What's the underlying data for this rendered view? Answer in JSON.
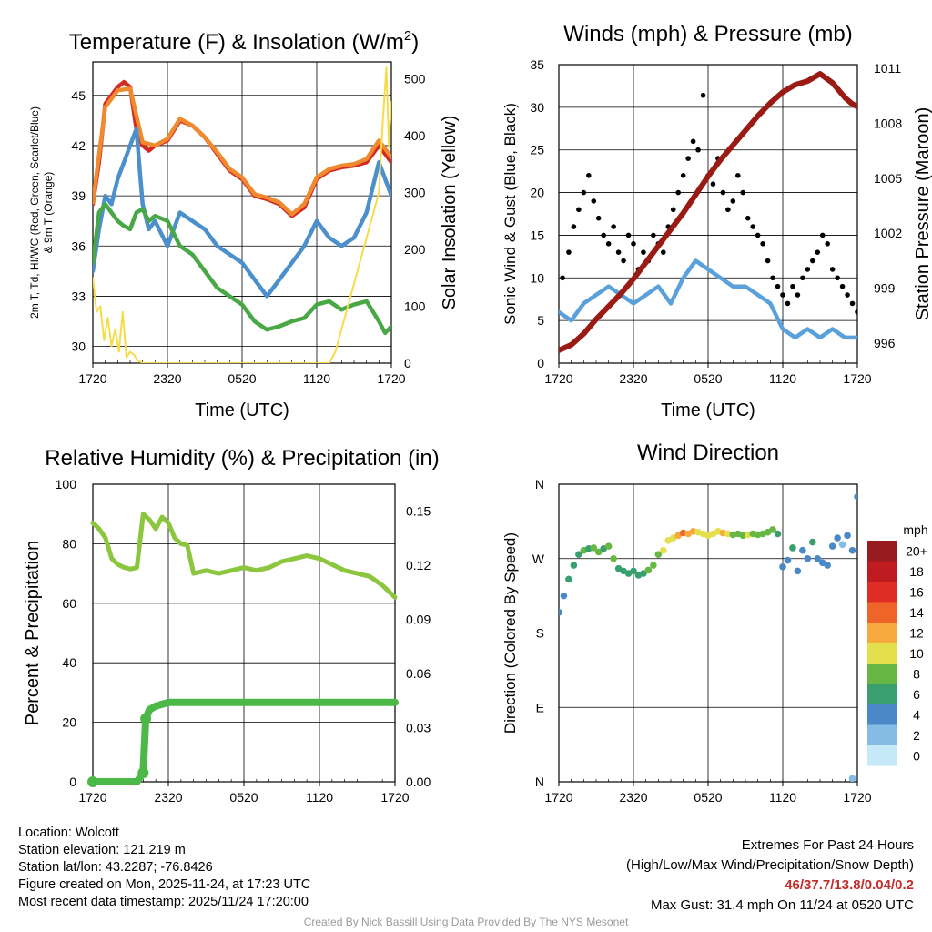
{
  "colors": {
    "red": "#d42a24",
    "orange": "#f08a2e",
    "blue": "#4b90cc",
    "green": "#48a845",
    "yellow": "#f7dc4a",
    "maroon": "#9a1a14",
    "black": "#000000",
    "wind_blue": "#5aa0da",
    "rh_green": "#8cc63f",
    "precip_green": "#4cb848"
  },
  "chart_data": [
    {
      "id": "temp",
      "type": "line",
      "title": "Temperature (F) & Insolation (W/m²)",
      "title_main": "Temperature (F) & Insolation (W/m",
      "title_sup": "2",
      "title_close": ")",
      "xlabel": "Time (UTC)",
      "ylabel_line1": "2m T, Td, HI/WC (Red, Green, Scarlet/Blue)",
      "ylabel_line2": "& 9m T (Orange)",
      "ylabel_right": "Solar Insolation (Yellow)",
      "x_ticks": [
        "1720",
        "2320",
        "0520",
        "1120",
        "1720"
      ],
      "xlim": [
        0,
        24
      ],
      "ylim": [
        29,
        47
      ],
      "y_ticks": [
        30,
        33,
        36,
        39,
        42,
        45
      ],
      "y2lim": [
        0,
        530
      ],
      "y2_ticks": [
        0,
        100,
        200,
        300,
        400,
        500
      ],
      "series": [
        {
          "name": "2m T",
          "color": "red",
          "axis": "left",
          "x": [
            0,
            0.5,
            1,
            1.5,
            2,
            2.5,
            3,
            3.5,
            4,
            4.5,
            5,
            6,
            7,
            8,
            9,
            10,
            11,
            12,
            13,
            14,
            15,
            16,
            17,
            18,
            19,
            20,
            21,
            22,
            23,
            23.5,
            24
          ],
          "y": [
            38.5,
            41,
            44.5,
            45,
            45.5,
            45.8,
            45.5,
            43,
            42,
            41.7,
            42,
            42.3,
            43.5,
            43.2,
            42.5,
            41.5,
            40.5,
            40,
            39,
            38.8,
            38.5,
            37.8,
            38.3,
            40,
            40.5,
            40.7,
            40.8,
            41,
            42,
            41.5,
            41
          ]
        },
        {
          "name": "9m T",
          "color": "orange",
          "axis": "left",
          "x": [
            0,
            1,
            2,
            3,
            4,
            5,
            6,
            7,
            8,
            9,
            10,
            11,
            12,
            13,
            14,
            15,
            16,
            17,
            18,
            19,
            20,
            21,
            22,
            23,
            24
          ],
          "y": [
            38.6,
            44.3,
            45.3,
            45.4,
            42.2,
            42,
            42.4,
            43.6,
            43.2,
            42.5,
            41.6,
            40.6,
            40.1,
            39.1,
            38.9,
            38.6,
            37.9,
            38.5,
            40.1,
            40.6,
            40.8,
            40.9,
            41.2,
            42.3,
            41.3
          ]
        },
        {
          "name": "HI/WC",
          "color": "blue",
          "axis": "left",
          "x": [
            0,
            0.5,
            1,
            1.5,
            2,
            2.5,
            3,
            3.5,
            4,
            4.5,
            5,
            6,
            7,
            8,
            9,
            10,
            11,
            12,
            13,
            14,
            15,
            16,
            17,
            18,
            19,
            20,
            21,
            22,
            23,
            23.5,
            24
          ],
          "y": [
            34.5,
            37,
            39,
            38.5,
            40,
            41,
            42,
            43,
            38.5,
            37,
            37.5,
            36,
            38,
            37.5,
            37,
            36,
            35.5,
            35,
            34,
            33,
            34,
            35,
            36,
            37.5,
            36.5,
            36,
            36.5,
            38,
            41,
            40,
            39
          ]
        },
        {
          "name": "2m Td",
          "color": "green",
          "axis": "left",
          "x": [
            0,
            0.5,
            1,
            1.5,
            2,
            2.5,
            3,
            3.5,
            4,
            4.5,
            5,
            6,
            7,
            8,
            9,
            10,
            11,
            12,
            13,
            14,
            15,
            16,
            17,
            18,
            19,
            20,
            21,
            22,
            23,
            23.5,
            24
          ],
          "y": [
            35,
            38,
            38.5,
            38,
            37.5,
            37.2,
            37,
            38,
            38.2,
            37.5,
            37.8,
            37.5,
            36,
            35.5,
            34.5,
            33.5,
            33,
            32.5,
            31.5,
            31,
            31.2,
            31.5,
            31.7,
            32.5,
            32.7,
            32.2,
            32.5,
            32.7,
            31.5,
            30.8,
            31.2
          ]
        },
        {
          "name": "Solar Insolation",
          "color": "yellow",
          "axis": "right",
          "x": [
            0,
            0.3,
            0.6,
            0.9,
            1.2,
            1.5,
            1.8,
            2.1,
            2.4,
            2.7,
            3,
            3.3,
            3.6,
            4,
            5,
            10,
            15,
            19,
            19.5,
            20,
            20.5,
            21,
            21.5,
            22,
            22.5,
            23,
            23.3,
            23.6,
            23.8,
            24
          ],
          "y": [
            150,
            90,
            100,
            40,
            80,
            30,
            60,
            20,
            90,
            10,
            20,
            15,
            5,
            0,
            0,
            0,
            0,
            0,
            20,
            60,
            100,
            140,
            180,
            220,
            260,
            300,
            420,
            520,
            380,
            460
          ]
        }
      ]
    },
    {
      "id": "winds",
      "type": "line+scatter",
      "title": "Winds (mph) & Pressure (mb)",
      "xlabel": "Time (UTC)",
      "ylabel": "Sonic Wind & Gust (Blue, Black)",
      "ylabel_right": "Station Pressure (Maroon)",
      "x_ticks": [
        "1720",
        "2320",
        "0520",
        "1120",
        "1720"
      ],
      "xlim": [
        0,
        24
      ],
      "ylim": [
        0,
        35
      ],
      "y_ticks": [
        0,
        5,
        10,
        15,
        20,
        25,
        30,
        35
      ],
      "y2lim": [
        994.9,
        1011.2
      ],
      "y2_ticks": [
        996,
        999,
        1002,
        1005,
        1008,
        1011
      ],
      "series": [
        {
          "name": "Sonic Wind",
          "color": "wind_blue",
          "axis": "left",
          "x": [
            0,
            1,
            2,
            3,
            4,
            5,
            6,
            7,
            8,
            9,
            10,
            11,
            12,
            13,
            14,
            15,
            16,
            17,
            18,
            19,
            20,
            21,
            22,
            23,
            24
          ],
          "y": [
            6,
            5,
            7,
            8,
            9,
            8,
            7,
            8,
            9,
            7,
            10,
            12,
            11,
            10,
            9,
            9,
            8,
            7,
            4,
            3,
            4,
            3,
            4,
            3,
            3
          ]
        },
        {
          "name": "Gust",
          "color": "black",
          "axis": "left",
          "kind": "scatter",
          "x": [
            0.3,
            0.8,
            1.2,
            1.6,
            2,
            2.4,
            2.8,
            3.2,
            3.6,
            4,
            4.4,
            4.8,
            5.2,
            5.6,
            6,
            6.4,
            6.8,
            7.2,
            7.6,
            8,
            8.4,
            8.8,
            9.2,
            9.6,
            10,
            10.4,
            10.8,
            11.2,
            11.6,
            12,
            12.4,
            12.8,
            13.2,
            13.6,
            14,
            14.4,
            14.8,
            15.2,
            15.6,
            16,
            16.4,
            16.8,
            17.2,
            17.6,
            18,
            18.4,
            18.8,
            19.2,
            19.6,
            20,
            20.4,
            20.8,
            21.2,
            21.6,
            22,
            22.4,
            22.8,
            23.2,
            23.6,
            24
          ],
          "y": [
            10,
            13,
            16,
            18,
            20,
            22,
            19,
            17,
            15,
            14,
            16,
            13,
            12,
            15,
            14,
            11,
            13,
            12,
            15,
            14,
            13,
            16,
            18,
            20,
            22,
            24,
            26,
            25,
            31.4,
            22,
            21,
            24,
            20,
            18,
            19,
            22,
            20,
            17,
            16,
            15,
            14,
            12,
            10,
            9,
            8,
            7,
            9,
            8,
            10,
            11,
            12,
            13,
            15,
            14,
            11,
            10,
            9,
            8,
            7,
            6
          ]
        },
        {
          "name": "Station Pressure",
          "color": "maroon",
          "axis": "right",
          "x": [
            0,
            1,
            2,
            3,
            4,
            5,
            6,
            7,
            8,
            9,
            10,
            11,
            12,
            13,
            14,
            15,
            16,
            17,
            18,
            19,
            20,
            21,
            22,
            23,
            23.5,
            24
          ],
          "y": [
            995.6,
            995.9,
            996.5,
            997.3,
            998,
            998.7,
            999.5,
            1000.4,
            1001.3,
            1002.2,
            1003.1,
            1004.1,
            1005.1,
            1006,
            1006.8,
            1007.6,
            1008.4,
            1009.1,
            1009.7,
            1010.1,
            1010.3,
            1010.7,
            1010.2,
            1009.4,
            1009.1,
            1008.9
          ]
        }
      ]
    },
    {
      "id": "rh",
      "type": "line+scatter",
      "title": "Relative Humidity (%) & Precipitation (in)",
      "ylabel": "Percent & Precipitation",
      "x_ticks": [
        "1720",
        "2320",
        "0520",
        "1120",
        "1720"
      ],
      "xlim": [
        0,
        24
      ],
      "ylim": [
        0,
        100
      ],
      "y_ticks": [
        0,
        20,
        40,
        60,
        80,
        100
      ],
      "y2lim": [
        0,
        0.165
      ],
      "y2_ticks": [
        "0.00",
        "0.03",
        "0.06",
        "0.09",
        "0.12",
        "0.15"
      ],
      "series": [
        {
          "name": "Relative Humidity",
          "color": "rh_green",
          "axis": "left",
          "x": [
            0,
            0.5,
            1,
            1.5,
            2,
            2.5,
            3,
            3.5,
            4,
            4.5,
            5,
            5.5,
            6,
            6.5,
            7,
            7.5,
            8,
            9,
            10,
            11,
            12,
            13,
            14,
            15,
            16,
            17,
            18,
            19,
            20,
            21,
            22,
            23,
            23.5,
            24
          ],
          "y": [
            87,
            85,
            82,
            75,
            73,
            72,
            71.5,
            72,
            90,
            88,
            85,
            89,
            87,
            82,
            80,
            79.5,
            70,
            71,
            70,
            71,
            72,
            71,
            72,
            74,
            75,
            76,
            75,
            73,
            71,
            70,
            69,
            66,
            64,
            62
          ]
        },
        {
          "name": "Precipitation",
          "color": "precip_green",
          "axis": "right",
          "kind": "scatter",
          "x": [
            0,
            0.5,
            1,
            1.5,
            2,
            2.5,
            3,
            3.5,
            4,
            4.2,
            4.5,
            5,
            6,
            7,
            8,
            9,
            10,
            11,
            12,
            13,
            14,
            15,
            16,
            17,
            18,
            19,
            20,
            21,
            22,
            23,
            24
          ],
          "y": [
            0,
            0,
            0,
            0,
            0,
            0,
            0,
            0,
            0.005,
            0.035,
            0.04,
            0.042,
            0.044,
            0.044,
            0.044,
            0.044,
            0.044,
            0.044,
            0.044,
            0.044,
            0.044,
            0.044,
            0.044,
            0.044,
            0.044,
            0.044,
            0.044,
            0.044,
            0.044,
            0.044,
            0.044
          ]
        }
      ]
    },
    {
      "id": "wdir",
      "type": "scatter",
      "title": "Wind Direction",
      "ylabel": "Direction (Colored By Speed)",
      "x_ticks": [
        "1720",
        "2320",
        "0520",
        "1120",
        "1720"
      ],
      "xlim": [
        0,
        24
      ],
      "y_tick_labels": [
        "N",
        "E",
        "S",
        "W",
        "N"
      ],
      "ylim": [
        0,
        360
      ],
      "colorbar_title": "mph",
      "colorbar_labels": [
        "0",
        "2",
        "4",
        "6",
        "8",
        "10",
        "12",
        "14",
        "16",
        "18",
        "20+"
      ],
      "colorbar_colors": [
        "#c6e9f7",
        "#85bce6",
        "#4b88c8",
        "#3a9f6e",
        "#67b745",
        "#e3df4d",
        "#f6a93c",
        "#ef6428",
        "#df2c25",
        "#be1c20",
        "#981b1f"
      ],
      "series": [
        {
          "name": "Direction",
          "kind": "scatter",
          "x": [
            0,
            0.4,
            0.8,
            1.2,
            1.6,
            2,
            2.4,
            2.8,
            3.2,
            3.6,
            4,
            4.4,
            4.8,
            5.2,
            5.6,
            6,
            6.4,
            6.8,
            7.2,
            7.6,
            8,
            8.4,
            8.8,
            9.2,
            9.6,
            10,
            10.4,
            10.8,
            11.2,
            11.6,
            12,
            12.4,
            12.8,
            13.2,
            13.6,
            14,
            14.4,
            14.8,
            15.2,
            15.6,
            16,
            16.4,
            16.8,
            17.2,
            17.6,
            18,
            18.4,
            18.8,
            19.2,
            19.6,
            20,
            20.4,
            20.8,
            21.2,
            21.6,
            22,
            22.4,
            22.8,
            23.2,
            23.6,
            24
          ],
          "y": [
            205,
            225,
            245,
            262,
            275,
            280,
            282,
            283,
            278,
            282,
            285,
            270,
            258,
            255,
            252,
            255,
            250,
            252,
            256,
            262,
            275,
            280,
            292,
            295,
            298,
            301,
            300,
            303,
            302,
            300,
            298,
            300,
            303,
            301,
            300,
            299,
            300,
            298,
            299,
            300,
            299,
            300,
            302,
            305,
            300,
            260,
            268,
            283,
            255,
            280,
            270,
            290,
            270,
            265,
            262,
            285,
            295,
            287,
            298,
            280,
            345
          ],
          "spd": [
            4,
            4,
            5,
            5,
            6,
            7,
            6,
            7,
            8,
            6,
            7,
            7,
            6,
            6,
            6,
            5,
            6,
            6,
            7,
            7,
            8,
            9,
            10,
            10,
            12,
            13,
            12,
            11,
            10,
            10,
            9,
            10,
            10,
            11,
            9,
            8,
            8,
            8,
            9,
            8,
            8,
            7,
            8,
            7,
            5,
            3,
            4,
            6,
            4,
            3,
            4,
            5,
            3,
            4,
            4,
            3,
            4,
            2,
            4,
            3,
            4
          ]
        },
        {
          "name": "Direction outlier",
          "kind": "scatter",
          "x": [
            23.6
          ],
          "y": [
            4
          ],
          "spd": [
            1
          ]
        }
      ]
    }
  ],
  "metadata_lines": {
    "location": "Location: Wolcott",
    "elevation": "Station elevation: 121.219 m",
    "latlon": "Station lat/lon: 43.2287; -76.8426",
    "created": "Figure created on Mon, 2025-11-24, at 17:23 UTC",
    "recent": "Most recent data timestamp: 2025/11/24 17:20:00"
  },
  "extremes": {
    "heading": "Extremes For Past 24 Hours",
    "legend": "(High/Low/Max Wind/Precipitation/Snow Depth)",
    "values": "46/37.7/13.8/0.04/0.2",
    "max_gust": "Max Gust: 31.4 mph On 11/24 at 0520 UTC"
  },
  "credit": "Created By Nick Bassill Using Data Provided By The NYS Mesonet"
}
